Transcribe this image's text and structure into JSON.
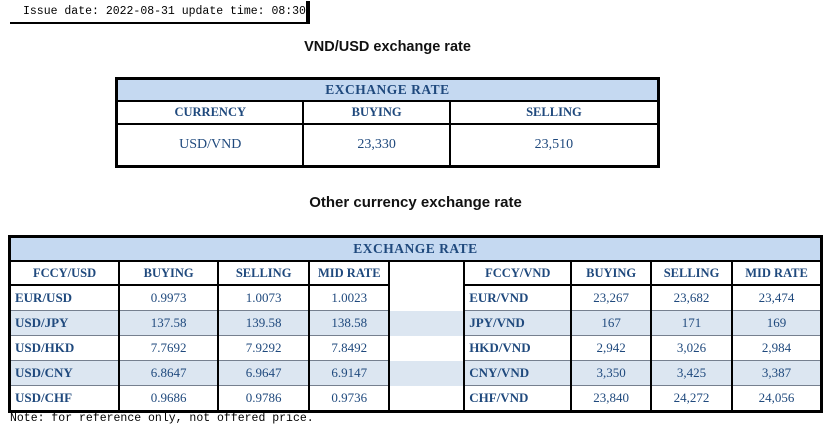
{
  "meta": {
    "issue_line": "Issue date: 2022-08-31 update time: 08:30",
    "note": "Note: for reference only, not offered price."
  },
  "colors": {
    "header_band": "#c5d9f1",
    "row_stripe": "#dce6f1",
    "text_blue": "#1f497d",
    "border": "#000000"
  },
  "vnd_usd_section": {
    "title": "VND/USD exchange rate",
    "table": {
      "band_title": "EXCHANGE RATE",
      "columns": [
        "CURRENCY",
        "BUYING",
        "SELLING"
      ],
      "rows": [
        [
          "USD/VND",
          "23,330",
          "23,510"
        ]
      ]
    }
  },
  "other_section": {
    "title": "Other currency exchange rate",
    "table": {
      "band_title": "EXCHANGE  RATE",
      "left": {
        "columns": [
          "FCCY/USD",
          "BUYING",
          "SELLING",
          "MID RATE"
        ],
        "rows": [
          [
            "EUR/USD",
            "0.9973",
            "1.0073",
            "1.0023"
          ],
          [
            "USD/JPY",
            "137.58",
            "139.58",
            "138.58"
          ],
          [
            "USD/HKD",
            "7.7692",
            "7.9292",
            "7.8492"
          ],
          [
            "USD/CNY",
            "6.8647",
            "6.9647",
            "6.9147"
          ],
          [
            "USD/CHF",
            "0.9686",
            "0.9786",
            "0.9736"
          ]
        ]
      },
      "right": {
        "columns": [
          "FCCY/VND",
          "BUYING",
          "SELLING",
          "MID RATE"
        ],
        "rows": [
          [
            "EUR/VND",
            "23,267",
            "23,682",
            "23,474"
          ],
          [
            "JPY/VND",
            "167",
            "171",
            "169"
          ],
          [
            "HKD/VND",
            "2,942",
            "3,026",
            "2,984"
          ],
          [
            "CNY/VND",
            "3,350",
            "3,425",
            "3,387"
          ],
          [
            "CHF/VND",
            "23,840",
            "24,272",
            "24,056"
          ]
        ]
      }
    }
  }
}
